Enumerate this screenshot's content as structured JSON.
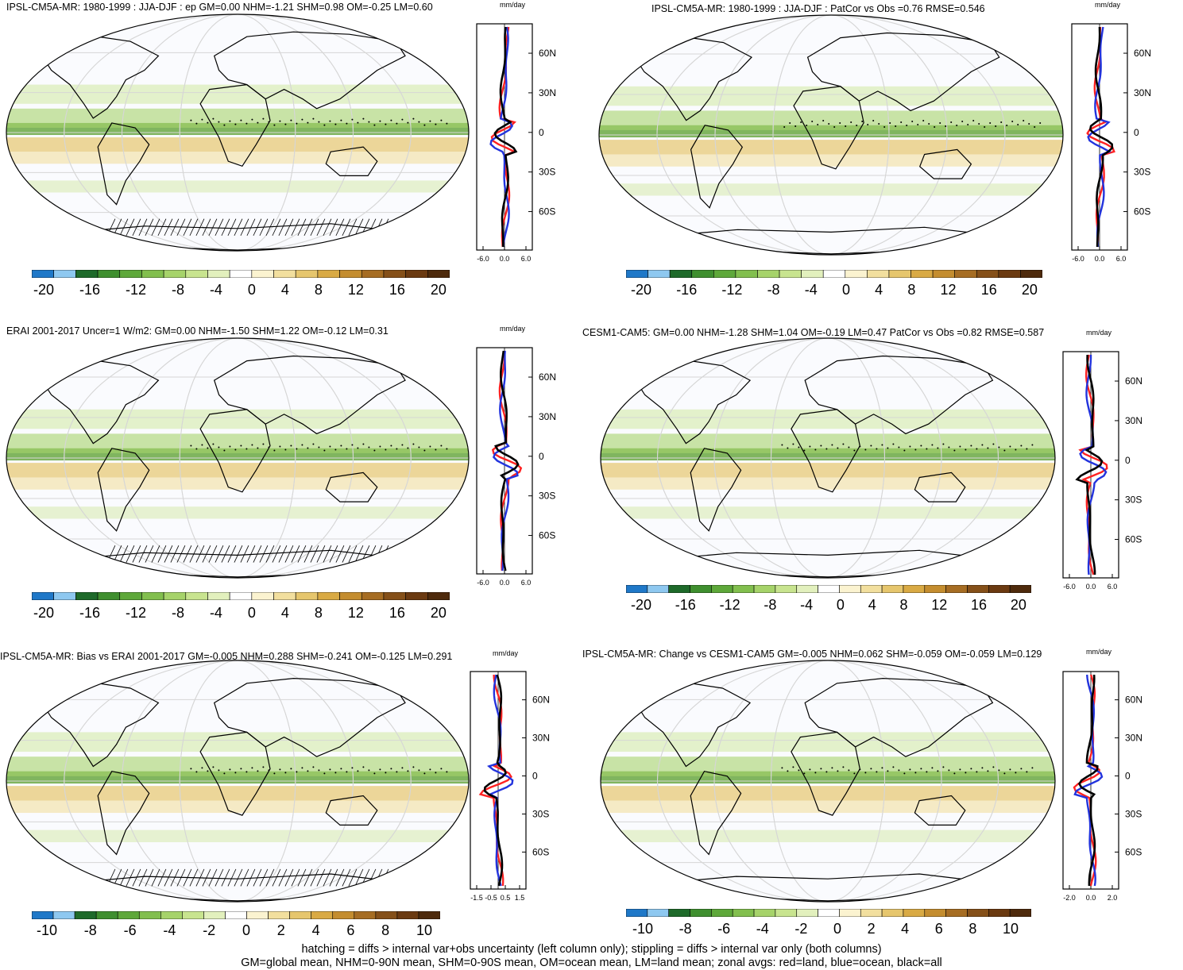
{
  "panels": [
    {
      "title": "IPSL-CM5A-MR: 1980-1999 : JJA-DJF : ep GM=0.00 NHM=-1.21 SHM=0.98 OM=-0.25 LM=0.60",
      "cbar_labels": [
        "-20",
        "-16",
        "-12",
        "-8",
        "-4",
        "0",
        "4",
        "8",
        "12",
        "16",
        "20"
      ],
      "zonal_unit": "mm/day",
      "zonal_xticks": [
        "-6.0",
        "0.0",
        "6.0"
      ],
      "zonal_yticks": [
        "60N",
        "30N",
        "0",
        "30S",
        "60S"
      ],
      "hatching": true
    },
    {
      "title": "IPSL-CM5A-MR: 1980-1999 : JJA-DJF : PatCor vs Obs =0.76 RMSE=0.546",
      "cbar_labels": [
        "-20",
        "-16",
        "-12",
        "-8",
        "-4",
        "0",
        "4",
        "8",
        "12",
        "16",
        "20"
      ],
      "zonal_unit": "mm/day",
      "zonal_xticks": [
        "-6.0",
        "0.0",
        "6.0"
      ],
      "zonal_yticks": [
        "60N",
        "30N",
        "0",
        "30S",
        "60S"
      ],
      "hatching": false
    },
    {
      "title": "ERAI 2001-2017 Uncer=1 W/m2: GM=0.00 NHM=-1.50 SHM=1.22 OM=-0.12 LM=0.31",
      "cbar_labels": [
        "-20",
        "-16",
        "-12",
        "-8",
        "-4",
        "0",
        "4",
        "8",
        "12",
        "16",
        "20"
      ],
      "zonal_unit": "mm/day",
      "zonal_xticks": [
        "-6.0",
        "0.0",
        "6.0"
      ],
      "zonal_yticks": [
        "60N",
        "30N",
        "0",
        "30S",
        "60S"
      ],
      "hatching": true
    },
    {
      "title": "CESM1-CAM5: GM=0.00 NHM=-1.28 SHM=1.04 OM=-0.19 LM=0.47 PatCor vs Obs =0.82 RMSE=0.587",
      "cbar_labels": [
        "-20",
        "-16",
        "-12",
        "-8",
        "-4",
        "0",
        "4",
        "8",
        "12",
        "16",
        "20"
      ],
      "zonal_unit": "mm/day",
      "zonal_xticks": [
        "-6.0",
        "0.0",
        "6.0"
      ],
      "zonal_yticks": [
        "60N",
        "30N",
        "0",
        "30S",
        "60S"
      ],
      "hatching": false
    },
    {
      "title": "IPSL-CM5A-MR: Bias vs ERAI 2001-2017 GM=-0.005 NHM=0.288 SHM=-0.241 OM=-0.125 LM=0.291",
      "cbar_labels": [
        "-10",
        "-8",
        "-6",
        "-4",
        "-2",
        "0",
        "2",
        "4",
        "6",
        "8",
        "10"
      ],
      "zonal_unit": "mm/day",
      "zonal_xticks": [
        "-1.5",
        "-0.5",
        "0.5",
        "1.5"
      ],
      "zonal_yticks": [
        "60N",
        "30N",
        "0",
        "30S",
        "60S"
      ],
      "hatching": true
    },
    {
      "title": "IPSL-CM5A-MR: Change vs CESM1-CAM5 GM=-0.005 NHM=0.062 SHM=-0.059 OM=-0.059 LM=0.129",
      "cbar_labels": [
        "-10",
        "-8",
        "-6",
        "-4",
        "-2",
        "0",
        "2",
        "4",
        "6",
        "8",
        "10"
      ],
      "zonal_unit": "mm/day",
      "zonal_xticks": [
        "-2.0",
        "0.0",
        "2.0"
      ],
      "zonal_yticks": [
        "60N",
        "30N",
        "0",
        "30S",
        "60S"
      ],
      "hatching": false
    }
  ],
  "colorbar_colors": [
    "#1f78c8",
    "#8ec8f0",
    "#1e6a2a",
    "#3f8f2f",
    "#5ea83a",
    "#82bf4e",
    "#a6d36a",
    "#c8e48f",
    "#e2f0bd",
    "#ffffff",
    "#fbf3d0",
    "#f2df9e",
    "#e6c66d",
    "#d9aa44",
    "#c48d2f",
    "#a66d23",
    "#855019",
    "#6b3a11",
    "#4e2a0c"
  ],
  "line_colors": {
    "land": "#ff2222",
    "ocean": "#2233dd",
    "all": "#000000"
  },
  "footer": {
    "line1": "hatching = diffs > internal var+obs uncertainty (left column only); stippling = diffs > internal var only (both columns)",
    "line2": "GM=global mean, NHM=0-90N mean, SHM=0-90S mean, OM=ocean mean, LM=land mean; zonal avgs: red=land, blue=ocean, black=all"
  }
}
